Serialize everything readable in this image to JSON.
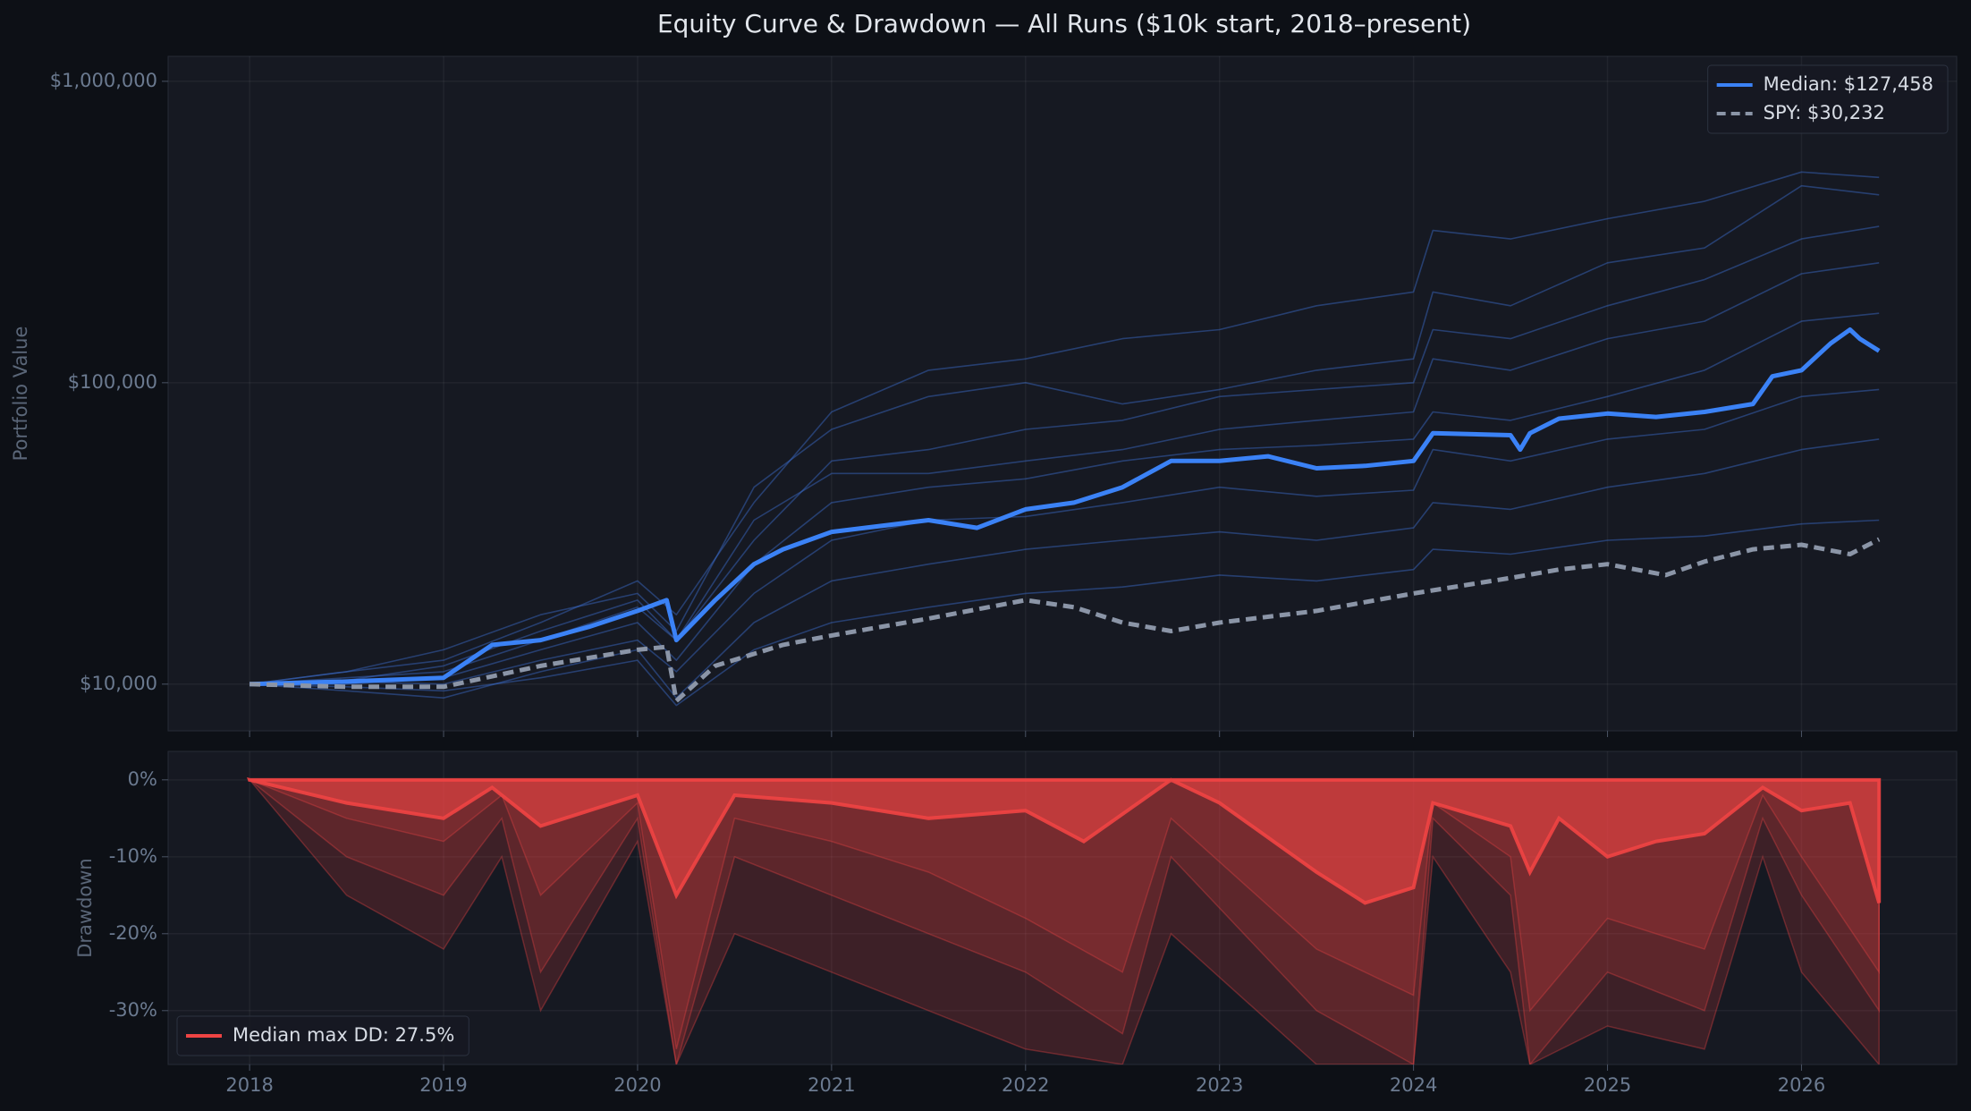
{
  "chart_data": [
    {
      "type": "line",
      "title": "Equity Curve & Drawdown — All Runs  ($10k start, 2018–present)",
      "ylabel": "Portfolio Value",
      "log_scale": true,
      "grid": true,
      "legend": "upper right",
      "xlim": [
        2017.58,
        2026.8
      ],
      "ylim": [
        7000,
        1210000
      ],
      "yticks": [
        {
          "value": 10000,
          "label": "$10,000"
        },
        {
          "value": 100000,
          "label": "$100,000"
        },
        {
          "value": 1000000,
          "label": "$1,000,000"
        }
      ],
      "series": [
        {
          "color": "#3b6fd0",
          "x": [
            2018,
            2018.5,
            2019,
            2019.5,
            2020,
            2020.2,
            2020.6,
            2021,
            2021.5,
            2022,
            2022.5,
            2023,
            2023.5,
            2024,
            2024.1,
            2024.5,
            2025,
            2025.5,
            2026,
            2026.4
          ],
          "values": [
            10000,
            11000,
            12000,
            16000,
            22000,
            17000,
            40000,
            80000,
            110000,
            120000,
            140000,
            150000,
            180000,
            200000,
            320000,
            300000,
            350000,
            400000,
            500000,
            480000
          ]
        },
        {
          "color": "#3b6fd0",
          "x": [
            2018,
            2018.5,
            2019,
            2019.5,
            2020,
            2020.2,
            2020.6,
            2021,
            2021.5,
            2022,
            2022.5,
            2023,
            2023.5,
            2024,
            2024.1,
            2024.5,
            2025,
            2025.5,
            2026,
            2026.4
          ],
          "values": [
            10000,
            10500,
            11000,
            14000,
            18000,
            14000,
            30000,
            55000,
            60000,
            70000,
            75000,
            90000,
            95000,
            100000,
            150000,
            140000,
            180000,
            220000,
            300000,
            330000
          ]
        },
        {
          "color": "#3b6fd0",
          "x": [
            2018,
            2018.5,
            2019,
            2019.5,
            2020,
            2020.2,
            2020.6,
            2021,
            2021.5,
            2022,
            2022.5,
            2023,
            2023.5,
            2024,
            2024.1,
            2024.5,
            2025,
            2025.5,
            2026,
            2026.4
          ],
          "values": [
            10000,
            10000,
            10500,
            13000,
            16000,
            12000,
            25000,
            40000,
            45000,
            48000,
            55000,
            60000,
            62000,
            65000,
            80000,
            75000,
            90000,
            110000,
            160000,
            170000
          ]
        },
        {
          "color": "#3b6fd0",
          "x": [
            2018,
            2018.5,
            2019,
            2019.5,
            2020,
            2020.2,
            2020.6,
            2021,
            2021.5,
            2022,
            2022.5,
            2023,
            2023.5,
            2024,
            2024.1,
            2024.5,
            2025,
            2025.5,
            2026,
            2026.4
          ],
          "values": [
            10000,
            10200,
            10000,
            12000,
            14000,
            11000,
            20000,
            30000,
            35000,
            36000,
            40000,
            45000,
            42000,
            44000,
            60000,
            55000,
            65000,
            70000,
            90000,
            95000
          ]
        },
        {
          "color": "#3b6fd0",
          "x": [
            2018,
            2018.5,
            2019,
            2019.5,
            2020,
            2020.2,
            2020.6,
            2021,
            2021.5,
            2022,
            2022.5,
            2023,
            2023.5,
            2024,
            2024.1,
            2024.5,
            2025,
            2025.5,
            2026,
            2026.4
          ],
          "values": [
            10000,
            9500,
            9000,
            11000,
            13000,
            9000,
            16000,
            22000,
            25000,
            28000,
            30000,
            32000,
            30000,
            33000,
            40000,
            38000,
            45000,
            50000,
            60000,
            65000
          ]
        },
        {
          "color": "#3b6fd0",
          "x": [
            2018,
            2018.5,
            2019,
            2019.5,
            2020,
            2020.2,
            2020.6,
            2021,
            2021.5,
            2022,
            2022.5,
            2023,
            2023.5,
            2024,
            2024.1,
            2024.5,
            2025,
            2025.5,
            2026,
            2026.4
          ],
          "values": [
            10000,
            9800,
            9500,
            10500,
            12000,
            8500,
            13000,
            16000,
            18000,
            20000,
            21000,
            23000,
            22000,
            24000,
            28000,
            27000,
            30000,
            31000,
            34000,
            35000
          ]
        },
        {
          "color": "#3b6fd0",
          "x": [
            2018,
            2018.5,
            2019,
            2019.5,
            2020,
            2020.2,
            2020.6,
            2021,
            2021.5,
            2022,
            2022.5,
            2023,
            2023.5,
            2024,
            2024.1,
            2024.5,
            2025,
            2025.5,
            2026,
            2026.4
          ],
          "values": [
            10000,
            11000,
            13000,
            17000,
            20000,
            15000,
            45000,
            70000,
            90000,
            100000,
            85000,
            95000,
            110000,
            120000,
            200000,
            180000,
            250000,
            280000,
            450000,
            420000
          ]
        },
        {
          "color": "#3b6fd0",
          "x": [
            2018,
            2018.5,
            2019,
            2019.5,
            2020,
            2020.2,
            2020.6,
            2021,
            2021.5,
            2022,
            2022.5,
            2023,
            2023.5,
            2024,
            2024.1,
            2024.5,
            2025,
            2025.5,
            2026,
            2026.4
          ],
          "values": [
            10000,
            10300,
            11500,
            15000,
            19000,
            14000,
            35000,
            50000,
            50000,
            55000,
            60000,
            70000,
            75000,
            80000,
            120000,
            110000,
            140000,
            160000,
            230000,
            250000
          ]
        },
        {
          "name": "Median: $127,458",
          "color": "#3b82f6",
          "x": [
            2018,
            2018.5,
            2019,
            2019.25,
            2019.5,
            2019.75,
            2020,
            2020.15,
            2020.2,
            2020.4,
            2020.6,
            2020.75,
            2021,
            2021.5,
            2021.75,
            2022,
            2022.25,
            2022.5,
            2022.75,
            2023,
            2023.25,
            2023.5,
            2023.75,
            2024,
            2024.1,
            2024.5,
            2024.55,
            2024.6,
            2024.75,
            2025,
            2025.25,
            2025.5,
            2025.75,
            2025.85,
            2026,
            2026.15,
            2026.25,
            2026.3,
            2026.4
          ],
          "values": [
            10000,
            10200,
            10500,
            13500,
            14000,
            15500,
            17500,
            19000,
            14000,
            19000,
            25000,
            28000,
            32000,
            35000,
            33000,
            38000,
            40000,
            45000,
            55000,
            55000,
            57000,
            52000,
            53000,
            55000,
            68000,
            67000,
            60000,
            68000,
            76000,
            79000,
            77000,
            80000,
            85000,
            105000,
            110000,
            135000,
            150000,
            140000,
            127458
          ]
        },
        {
          "name": "SPY: $30,232",
          "color": "#8b95a7",
          "linestyle": "dashed",
          "x": [
            2018,
            2018.5,
            2019,
            2019.5,
            2020,
            2020.15,
            2020.2,
            2020.4,
            2020.75,
            2021,
            2021.5,
            2022,
            2022.25,
            2022.5,
            2022.75,
            2023,
            2023.5,
            2024,
            2024.5,
            2024.75,
            2025,
            2025.3,
            2025.5,
            2025.75,
            2026,
            2026.25,
            2026.4
          ],
          "values": [
            10000,
            9800,
            9800,
            11500,
            13000,
            13300,
            8800,
            11500,
            13500,
            14500,
            16500,
            19000,
            18000,
            16000,
            15000,
            16000,
            17500,
            20000,
            22500,
            24000,
            25000,
            23000,
            25500,
            28000,
            29000,
            27000,
            30232
          ]
        }
      ]
    },
    {
      "type": "area",
      "ylabel": "Drawdown",
      "grid": true,
      "legend": "lower left",
      "xlim": [
        2017.58,
        2026.8
      ],
      "ylim": [
        -37,
        3.7
      ],
      "xticks": [
        2018,
        2019,
        2020,
        2021,
        2022,
        2023,
        2024,
        2025,
        2026
      ],
      "yticks": [
        {
          "value": 0,
          "label": "0%"
        },
        {
          "value": -10,
          "label": "-10%"
        },
        {
          "value": -20,
          "label": "-20%"
        },
        {
          "value": -30,
          "label": "-30%"
        }
      ],
      "series": [
        {
          "color": "#ef4444",
          "x": [
            2018,
            2018.5,
            2019,
            2019.3,
            2019.5,
            2020,
            2020.2,
            2020.5,
            2021,
            2021.5,
            2022,
            2022.5,
            2022.75,
            2023.5,
            2024,
            2024.1,
            2024.5,
            2024.6,
            2025,
            2025.5,
            2025.8,
            2026,
            2026.4
          ],
          "values": [
            0,
            -10,
            -15,
            -5,
            -25,
            -5,
            -37,
            -10,
            -15,
            -20,
            -25,
            -33,
            -10,
            -30,
            -37,
            -5,
            -15,
            -37,
            -25,
            -30,
            -5,
            -15,
            -30
          ]
        },
        {
          "color": "#ef4444",
          "x": [
            2018,
            2018.5,
            2019,
            2019.3,
            2019.5,
            2020,
            2020.2,
            2020.5,
            2021,
            2021.5,
            2022,
            2022.5,
            2022.75,
            2023.5,
            2024,
            2024.1,
            2024.5,
            2024.6,
            2025,
            2025.5,
            2025.8,
            2026,
            2026.4
          ],
          "values": [
            0,
            -5,
            -8,
            -2,
            -15,
            -3,
            -35,
            -5,
            -8,
            -12,
            -18,
            -25,
            -5,
            -22,
            -28,
            -3,
            -10,
            -30,
            -18,
            -22,
            -2,
            -10,
            -25
          ]
        },
        {
          "color": "#ef4444",
          "x": [
            2018,
            2018.5,
            2019,
            2019.3,
            2019.5,
            2020,
            2020.2,
            2020.5,
            2021,
            2021.5,
            2022,
            2022.5,
            2022.75,
            2023.5,
            2024,
            2024.1,
            2024.5,
            2024.6,
            2025,
            2025.5,
            2025.8,
            2026,
            2026.4
          ],
          "values": [
            0,
            -15,
            -22,
            -10,
            -30,
            -8,
            -37,
            -20,
            -25,
            -30,
            -35,
            -37,
            -20,
            -37,
            -37,
            -10,
            -25,
            -37,
            -32,
            -35,
            -10,
            -25,
            -37
          ]
        },
        {
          "name": "Median max DD: 27.5%",
          "color": "#ef4444",
          "x": [
            2018,
            2018.5,
            2019,
            2019.25,
            2019.5,
            2020,
            2020.2,
            2020.5,
            2021,
            2021.5,
            2022,
            2022.3,
            2022.75,
            2023,
            2023.5,
            2023.75,
            2024,
            2024.1,
            2024.5,
            2024.6,
            2024.75,
            2025,
            2025.25,
            2025.5,
            2025.8,
            2026,
            2026.25,
            2026.4
          ],
          "values": [
            0,
            -3,
            -5,
            -1,
            -6,
            -2,
            -15,
            -2,
            -3,
            -5,
            -4,
            -8,
            0,
            -3,
            -12,
            -16,
            -14,
            -3,
            -6,
            -12,
            -5,
            -10,
            -8,
            -7,
            -1,
            -4,
            -3,
            -16
          ]
        }
      ]
    }
  ]
}
